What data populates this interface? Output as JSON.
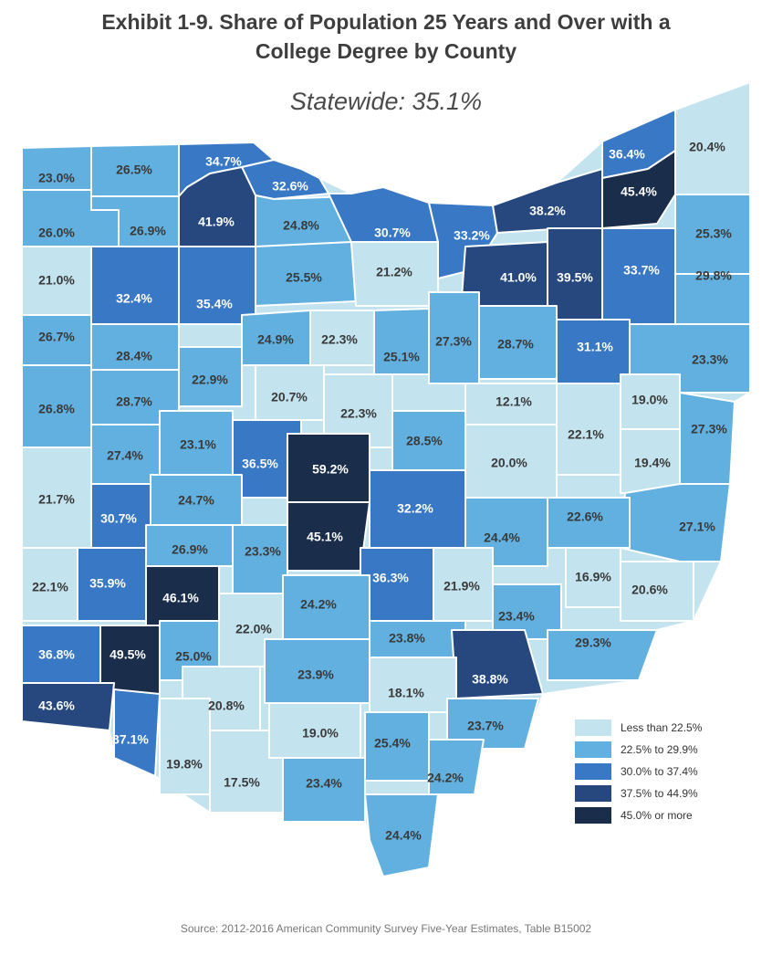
{
  "title": {
    "line1": "Exhibit 1-9. Share of Population 25 Years and Over with a",
    "line2": "College Degree by County"
  },
  "subtitle": "Statewide: 35.1%",
  "legend": [
    {
      "label": "Less than 22.5%",
      "color": "#c3e3ef"
    },
    {
      "label": "22.5% to 29.9%",
      "color": "#62b0df"
    },
    {
      "label": "30.0% to 37.4%",
      "color": "#3878c4"
    },
    {
      "label": "37.5% to 44.9%",
      "color": "#26487f"
    },
    {
      "label": "45.0% or more",
      "color": "#1a2d4b"
    }
  ],
  "map_data": {
    "type": "choropleth",
    "region": "Ohio counties",
    "county_values": [
      {
        "id": "williams",
        "value": "23.0%",
        "class": 1
      },
      {
        "id": "fulton",
        "value": "26.5%",
        "class": 1
      },
      {
        "id": "lucas",
        "value": "34.7%",
        "class": 2
      },
      {
        "id": "ottawa",
        "value": "32.6%",
        "class": 2
      },
      {
        "id": "defiance",
        "value": "26.0%",
        "class": 1
      },
      {
        "id": "henry",
        "value": "26.9%",
        "class": 1
      },
      {
        "id": "wood",
        "value": "41.9%",
        "class": 3
      },
      {
        "id": "sandusky",
        "value": "24.8%",
        "class": 1
      },
      {
        "id": "erie",
        "value": "30.7%",
        "class": 2
      },
      {
        "id": "lorain",
        "value": "33.2%",
        "class": 2
      },
      {
        "id": "cuyahoga",
        "value": "38.2%",
        "class": 3
      },
      {
        "id": "lake",
        "value": "36.4%",
        "class": 2
      },
      {
        "id": "geauga",
        "value": "45.4%",
        "class": 4
      },
      {
        "id": "ashtabula",
        "value": "20.4%",
        "class": 0
      },
      {
        "id": "trumbull",
        "value": "25.3%",
        "class": 1
      },
      {
        "id": "paulding",
        "value": "21.0%",
        "class": 0
      },
      {
        "id": "putnam",
        "value": "32.4%",
        "class": 2
      },
      {
        "id": "hancock",
        "value": "35.4%",
        "class": 2
      },
      {
        "id": "seneca",
        "value": "25.5%",
        "class": 1
      },
      {
        "id": "huron",
        "value": "21.2%",
        "class": 0
      },
      {
        "id": "medina",
        "value": "41.0%",
        "class": 3
      },
      {
        "id": "summit",
        "value": "39.5%",
        "class": 3
      },
      {
        "id": "portage",
        "value": "33.7%",
        "class": 2
      },
      {
        "id": "mahoning",
        "value": "29.8%",
        "class": 1
      },
      {
        "id": "vanwert",
        "value": "26.7%",
        "class": 1
      },
      {
        "id": "allen",
        "value": "28.4%",
        "class": 1
      },
      {
        "id": "hardin",
        "value": "24.9%",
        "class": 1
      },
      {
        "id": "wyandot",
        "value": "22.3%",
        "class": 0
      },
      {
        "id": "crawford",
        "value": "25.1%",
        "class": 1
      },
      {
        "id": "richland",
        "value": "27.3%",
        "class": 1
      },
      {
        "id": "wayne",
        "value": "28.7%",
        "class": 1
      },
      {
        "id": "stark",
        "value": "31.1%",
        "class": 2
      },
      {
        "id": "columbiana",
        "value": "23.3%",
        "class": 1
      },
      {
        "id": "mercer",
        "value": "26.8%",
        "class": 1
      },
      {
        "id": "auglaize",
        "value": "28.7%",
        "class": 1
      },
      {
        "id": "logan",
        "value": "22.9%",
        "class": 1
      },
      {
        "id": "marion",
        "value": "20.7%",
        "class": 0
      },
      {
        "id": "morrow",
        "value": "22.3%",
        "class": 0
      },
      {
        "id": "holmes",
        "value": "12.1%",
        "class": 0
      },
      {
        "id": "tuscarawas",
        "value": "22.1%",
        "class": 0
      },
      {
        "id": "carroll",
        "value": "19.0%",
        "class": 0
      },
      {
        "id": "jefferson",
        "value": "27.3%",
        "class": 1
      },
      {
        "id": "harrison",
        "value": "19.4%",
        "class": 0
      },
      {
        "id": "darke",
        "value": "21.7%",
        "class": 0
      },
      {
        "id": "shelby",
        "value": "27.4%",
        "class": 1
      },
      {
        "id": "champaign",
        "value": "23.1%",
        "class": 1
      },
      {
        "id": "union",
        "value": "36.5%",
        "class": 2
      },
      {
        "id": "delaware",
        "value": "59.2%",
        "class": 4
      },
      {
        "id": "knox",
        "value": "28.5%",
        "class": 1
      },
      {
        "id": "coshocton",
        "value": "20.0%",
        "class": 0
      },
      {
        "id": "belmont",
        "value": "27.1%",
        "class": 1
      },
      {
        "id": "miami",
        "value": "30.7%",
        "class": 2
      },
      {
        "id": "clark",
        "value": "24.7%",
        "class": 1
      },
      {
        "id": "franklin",
        "value": "45.1%",
        "class": 4
      },
      {
        "id": "licking",
        "value": "32.2%",
        "class": 2
      },
      {
        "id": "muskingum",
        "value": "24.4%",
        "class": 1
      },
      {
        "id": "guernsey",
        "value": "22.6%",
        "class": 1
      },
      {
        "id": "noble",
        "value": "16.9%",
        "class": 0
      },
      {
        "id": "monroe",
        "value": "20.6%",
        "class": 0
      },
      {
        "id": "preble",
        "value": "22.1%",
        "class": 0
      },
      {
        "id": "montgomery",
        "value": "35.9%",
        "class": 2
      },
      {
        "id": "greene",
        "value": "46.1%",
        "class": 4
      },
      {
        "id": "madison",
        "value": "26.9%",
        "class": 1
      },
      {
        "id": "pickaway",
        "value": "23.3%",
        "class": 1
      },
      {
        "id": "fairfield",
        "value": "36.3%",
        "class": 2
      },
      {
        "id": "perry",
        "value": "21.9%",
        "class": 0
      },
      {
        "id": "morgan",
        "value": "23.4%",
        "class": 1
      },
      {
        "id": "washington",
        "value": "29.3%",
        "class": 1
      },
      {
        "id": "butler",
        "value": "36.8%",
        "class": 2
      },
      {
        "id": "warren",
        "value": "49.5%",
        "class": 4
      },
      {
        "id": "clinton",
        "value": "25.0%",
        "class": 1
      },
      {
        "id": "fayette",
        "value": "22.0%",
        "class": 0
      },
      {
        "id": "ross",
        "value": "24.2%",
        "class": 1
      },
      {
        "id": "hocking",
        "value": "23.8%",
        "class": 1
      },
      {
        "id": "athens",
        "value": "38.8%",
        "class": 3
      },
      {
        "id": "hamilton",
        "value": "43.6%",
        "class": 3
      },
      {
        "id": "clermont",
        "value": "37.1%",
        "class": 2
      },
      {
        "id": "highland",
        "value": "20.8%",
        "class": 0
      },
      {
        "id": "pike",
        "value": "23.9%",
        "class": 1
      },
      {
        "id": "vinton",
        "value": "18.1%",
        "class": 0
      },
      {
        "id": "meigs",
        "value": "23.7%",
        "class": 1
      },
      {
        "id": "brown",
        "value": "19.8%",
        "class": 0
      },
      {
        "id": "adams",
        "value": "17.5%",
        "class": 0
      },
      {
        "id": "scioto",
        "value": "23.4%",
        "class": 1
      },
      {
        "id": "jackson",
        "value": "19.0%",
        "class": 0
      },
      {
        "id": "gallia",
        "value": "25.4%",
        "class": 1
      },
      {
        "id": "lawrence",
        "value": "24.2%",
        "class": 1
      },
      {
        "id": "lawrence-south",
        "value": "24.4%",
        "class": 1
      }
    ]
  },
  "source": "Source: 2012-2016 American Community Survey Five-Year Estimates, Table B15002"
}
